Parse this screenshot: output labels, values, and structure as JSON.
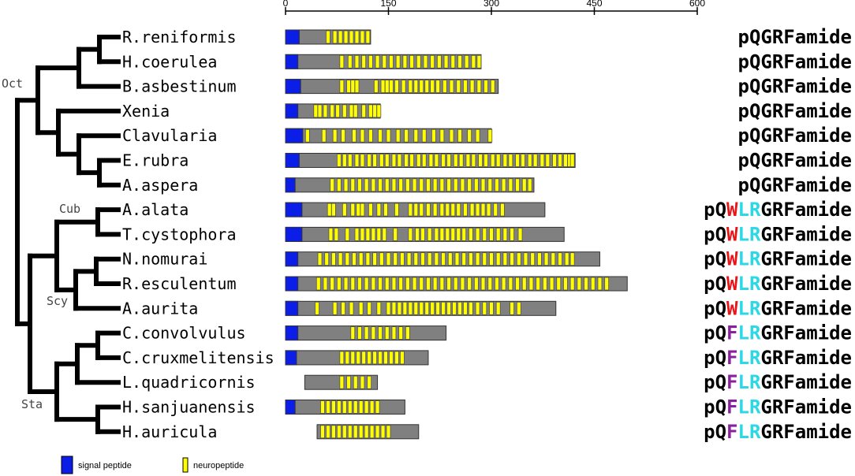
{
  "chart_data": {
    "type": "bar",
    "title": "",
    "axis": {
      "min": 0,
      "max": 600,
      "ticks": [
        "0",
        "150",
        "300",
        "450",
        "600"
      ]
    },
    "clades": [
      "Oct",
      "Cub",
      "Scy",
      "Sta"
    ],
    "legend": {
      "signal": "signal peptide",
      "neuro": "neuropeptide"
    },
    "colors": {
      "signal": "#0a1ee8",
      "neuro": "#ffff00",
      "precursor": "#808080",
      "tree": "#000000",
      "red": "#e8161a",
      "cyan": "#2ad8e6",
      "purple": "#8b1fa0",
      "black": "#000000"
    },
    "rows": [
      {
        "species": "R.reniformis",
        "start": 0,
        "end": 124,
        "signal": 20,
        "neuro": [
          62,
          72,
          80,
          88,
          96,
          104,
          112,
          120
        ],
        "motif": [
          [
            "pQGRFamide",
            "black"
          ]
        ]
      },
      {
        "species": "H.coerulea",
        "start": 0,
        "end": 285,
        "signal": 18,
        "neuro": [
          82,
          94,
          104,
          114,
          124,
          134,
          144,
          154,
          164,
          174,
          184,
          194,
          204,
          214,
          224,
          234,
          244,
          254,
          264,
          274,
          282
        ],
        "motif": [
          [
            "pQGRFamide",
            "black"
          ]
        ]
      },
      {
        "species": "B.asbestinum",
        "start": 0,
        "end": 310,
        "signal": 22,
        "neuro": [
          82,
          92,
          98,
          104,
          132,
          142,
          148,
          154,
          162,
          172,
          182,
          190,
          198,
          206,
          214,
          222,
          232,
          242,
          252,
          262,
          272,
          282,
          292,
          302
        ],
        "motif": [
          [
            "pQGRFamide",
            "black"
          ]
        ]
      },
      {
        "species": "Xenia",
        "start": 0,
        "end": 138,
        "signal": 18,
        "neuro": [
          44,
          50,
          58,
          68,
          76,
          86,
          96,
          102,
          114,
          124,
          130,
          136
        ],
        "motif": [
          [
            "pQGRFamide",
            "black"
          ]
        ]
      },
      {
        "species": "Clavularia",
        "start": 0,
        "end": 300,
        "signal": 25,
        "neuro": [
          32,
          56,
          72,
          84,
          100,
          112,
          124,
          138,
          150,
          164,
          176,
          190,
          202,
          216,
          228,
          242,
          254,
          268,
          280,
          298
        ],
        "motif": [
          [
            "pQGRFamide",
            "black"
          ]
        ]
      },
      {
        "species": "E.rubra",
        "start": 0,
        "end": 422,
        "signal": 20,
        "neuro": [
          78,
          86,
          94,
          104,
          112,
          122,
          130,
          140,
          148,
          158,
          166,
          176,
          184,
          194,
          202,
          212,
          220,
          230,
          238,
          248,
          256,
          266,
          274,
          284,
          292,
          302,
          310,
          320,
          328,
          338,
          346,
          356,
          364,
          374,
          382,
          392,
          400,
          408,
          414,
          418
        ],
        "motif": [
          [
            "pQGRFamide",
            "black"
          ]
        ]
      },
      {
        "species": "A.aspera",
        "start": 0,
        "end": 362,
        "signal": 14,
        "neuro": [
          68,
          78,
          88,
          98,
          108,
          118,
          128,
          138,
          148,
          158,
          168,
          178,
          188,
          198,
          208,
          218,
          228,
          238,
          248,
          258,
          268,
          278,
          288,
          298,
          308,
          318,
          328,
          338,
          348,
          356
        ],
        "motif": [
          [
            "pQGRFamide",
            "black"
          ]
        ]
      },
      {
        "species": "A.alata",
        "start": 0,
        "end": 378,
        "signal": 24,
        "neuro": [
          64,
          70,
          86,
          98,
          106,
          112,
          124,
          136,
          146,
          162,
          182,
          190,
          198,
          208,
          218,
          228,
          236,
          244,
          252,
          262,
          272,
          280,
          288,
          296,
          306,
          316
        ],
        "motif": [
          [
            "pQ",
            "black"
          ],
          [
            "W",
            "red"
          ],
          [
            "LR",
            "cyan"
          ],
          [
            "GRFamide",
            "black"
          ]
        ]
      },
      {
        "species": "T.cystophora",
        "start": 0,
        "end": 406,
        "signal": 24,
        "neuro": [
          66,
          74,
          90,
          104,
          112,
          120,
          128,
          136,
          144,
          160,
          182,
          192,
          200,
          210,
          220,
          228,
          236,
          244,
          252,
          260,
          270,
          280,
          290,
          300,
          310,
          320,
          330,
          342
        ],
        "motif": [
          [
            "pQ",
            "black"
          ],
          [
            "W",
            "red"
          ],
          [
            "LR",
            "cyan"
          ],
          [
            "GRFamide",
            "black"
          ]
        ]
      },
      {
        "species": "N.nomurai",
        "start": 0,
        "end": 458,
        "signal": 18,
        "neuro": [
          50,
          60,
          70,
          80,
          90,
          100,
          110,
          120,
          130,
          140,
          150,
          160,
          170,
          180,
          190,
          200,
          210,
          220,
          230,
          240,
          250,
          260,
          270,
          280,
          290,
          300,
          310,
          320,
          330,
          340,
          350,
          360,
          370,
          380,
          390,
          400,
          410,
          418
        ],
        "motif": [
          [
            "pQ",
            "black"
          ],
          [
            "W",
            "red"
          ],
          [
            "LR",
            "cyan"
          ],
          [
            "GRFamide",
            "black"
          ]
        ]
      },
      {
        "species": "R.esculentum",
        "start": 0,
        "end": 498,
        "signal": 18,
        "neuro": [
          48,
          58,
          68,
          78,
          88,
          98,
          108,
          118,
          128,
          138,
          148,
          158,
          168,
          178,
          188,
          198,
          208,
          218,
          228,
          238,
          248,
          258,
          268,
          278,
          288,
          298,
          308,
          318,
          328,
          338,
          348,
          358,
          368,
          378,
          388,
          398,
          408,
          418,
          428,
          438,
          448,
          458,
          468
        ],
        "motif": [
          [
            "pQ",
            "black"
          ],
          [
            "W",
            "red"
          ],
          [
            "LR",
            "cyan"
          ],
          [
            "GRFamide",
            "black"
          ]
        ]
      },
      {
        "species": "A.aurita",
        "start": 0,
        "end": 394,
        "signal": 18,
        "neuro": [
          46,
          72,
          84,
          96,
          110,
          122,
          136,
          150,
          158,
          166,
          174,
          182,
          190,
          198,
          206,
          214,
          222,
          230,
          238,
          246,
          254,
          262,
          270,
          280,
          290,
          300,
          310,
          330,
          340
        ],
        "motif": [
          [
            "pQ",
            "black"
          ],
          [
            "W",
            "red"
          ],
          [
            "LR",
            "cyan"
          ],
          [
            "GRFamide",
            "black"
          ]
        ]
      },
      {
        "species": "C.convolvulus",
        "start": 0,
        "end": 234,
        "signal": 18,
        "neuro": [
          98,
          108,
          118,
          128,
          138,
          148,
          158,
          168,
          178
        ],
        "motif": [
          [
            "pQ",
            "black"
          ],
          [
            "F",
            "purple"
          ],
          [
            "LR",
            "cyan"
          ],
          [
            "GRFamide",
            "black"
          ]
        ]
      },
      {
        "species": "C.cruxmelitensis",
        "start": 0,
        "end": 208,
        "signal": 16,
        "neuro": [
          82,
          90,
          98,
          106,
          114,
          122,
          130,
          138,
          146,
          154,
          162,
          170
        ],
        "motif": [
          [
            "pQ",
            "black"
          ],
          [
            "F",
            "purple"
          ],
          [
            "LR",
            "cyan"
          ],
          [
            "GRFamide",
            "black"
          ]
        ]
      },
      {
        "species": "L.quadricornis",
        "start": 28,
        "end": 134,
        "signal": 0,
        "neuro": [
          82,
          92,
          102,
          112,
          122
        ],
        "motif": [
          [
            "pQ",
            "black"
          ],
          [
            "F",
            "purple"
          ],
          [
            "LR",
            "cyan"
          ],
          [
            "GRFamide",
            "black"
          ]
        ]
      },
      {
        "species": "H.sanjuanensis",
        "start": 0,
        "end": 174,
        "signal": 14,
        "neuro": [
          54,
          62,
          70,
          78,
          86,
          94,
          102,
          110,
          118,
          126,
          134
        ],
        "motif": [
          [
            "pQ",
            "black"
          ],
          [
            "F",
            "purple"
          ],
          [
            "LR",
            "cyan"
          ],
          [
            "GRFamide",
            "black"
          ]
        ]
      },
      {
        "species": "H.auricula",
        "start": 46,
        "end": 194,
        "signal": 0,
        "neuro": [
          54,
          62,
          70,
          78,
          86,
          94,
          102,
          110,
          118,
          126,
          134,
          142,
          150
        ],
        "motif": [
          [
            "pQ",
            "black"
          ],
          [
            "F",
            "purple"
          ],
          [
            "LR",
            "cyan"
          ],
          [
            "GRFamide",
            "black"
          ]
        ]
      }
    ]
  }
}
